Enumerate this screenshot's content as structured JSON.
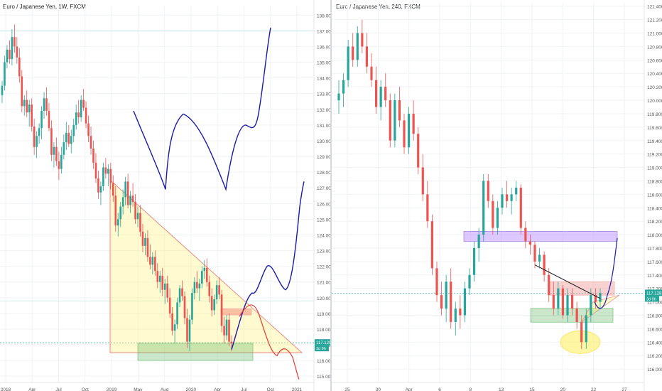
{
  "chart_data": [
    {
      "type": "candlestick",
      "title": "Euro / Japanese Yen, 1W, FXCM",
      "x_ticks": [
        "2018",
        "Apr",
        "Jul",
        "Oct",
        "2019",
        "May",
        "Aug",
        "2020",
        "Apr",
        "Jul",
        "Oct",
        "2021"
      ],
      "y_ticks": [
        138,
        137,
        136,
        135,
        134,
        133,
        132,
        131,
        130,
        129,
        128,
        127,
        126,
        125,
        124,
        123,
        122,
        121,
        120,
        119,
        118,
        117,
        116,
        115
      ],
      "ylim": [
        114.6,
        138.6
      ],
      "grid": true,
      "price_marker": {
        "value": "117.129",
        "sub": "3d 9h"
      },
      "candles": [
        [
          132.9,
          133.8,
          132.4,
          133.5
        ],
        [
          133.5,
          135.4,
          133.2,
          135.0
        ],
        [
          135.0,
          136.1,
          134.6,
          135.8
        ],
        [
          135.8,
          136.4,
          134.9,
          135.2
        ],
        [
          135.2,
          137.1,
          134.8,
          136.6
        ],
        [
          136.6,
          137.4,
          135.6,
          136.0
        ],
        [
          136.0,
          136.6,
          134.9,
          135.3
        ],
        [
          135.3,
          135.9,
          133.7,
          134.1
        ],
        [
          134.1,
          134.5,
          131.8,
          132.2
        ],
        [
          132.2,
          132.9,
          131.6,
          132.6
        ],
        [
          132.6,
          133.2,
          131.5,
          131.8
        ],
        [
          131.8,
          132.6,
          130.9,
          132.3
        ],
        [
          132.3,
          132.7,
          130.6,
          130.9
        ],
        [
          130.9,
          131.4,
          129.1,
          129.6
        ],
        [
          129.6,
          130.6,
          128.9,
          130.3
        ],
        [
          130.3,
          131.1,
          129.8,
          130.8
        ],
        [
          130.8,
          132.2,
          130.1,
          131.9
        ],
        [
          131.9,
          133.1,
          131.4,
          132.7
        ],
        [
          132.7,
          133.4,
          131.6,
          131.9
        ],
        [
          131.9,
          132.4,
          130.6,
          130.8
        ],
        [
          130.8,
          131.3,
          128.7,
          129.1
        ],
        [
          129.1,
          129.9,
          128.3,
          129.6
        ],
        [
          129.6,
          130.2,
          128.4,
          128.7
        ],
        [
          128.7,
          129.3,
          127.5,
          128.2
        ],
        [
          128.2,
          129.6,
          127.9,
          129.1
        ],
        [
          129.1,
          130.4,
          128.8,
          129.9
        ],
        [
          129.9,
          131.2,
          129.4,
          130.5
        ],
        [
          130.5,
          131.0,
          129.6,
          129.8
        ],
        [
          129.8,
          130.7,
          129.2,
          130.3
        ],
        [
          130.3,
          131.4,
          129.9,
          131.0
        ],
        [
          131.0,
          132.3,
          130.7,
          131.8
        ],
        [
          131.8,
          132.6,
          131.1,
          131.5
        ],
        [
          131.5,
          132.9,
          131.2,
          132.6
        ],
        [
          132.6,
          133.3,
          131.9,
          132.1
        ],
        [
          132.1,
          132.5,
          130.8,
          131.1
        ],
        [
          131.1,
          131.6,
          129.9,
          130.3
        ],
        [
          130.3,
          130.9,
          129.1,
          129.5
        ],
        [
          129.5,
          130.0,
          128.2,
          128.6
        ],
        [
          128.6,
          129.2,
          127.3,
          127.6
        ],
        [
          127.6,
          128.1,
          126.3,
          126.7
        ],
        [
          126.7,
          127.4,
          125.9,
          127.1
        ],
        [
          127.1,
          128.6,
          126.8,
          128.3
        ],
        [
          128.3,
          128.9,
          127.6,
          127.9
        ],
        [
          127.9,
          128.5,
          127.1,
          128.2
        ],
        [
          128.2,
          128.6,
          126.9,
          127.3
        ],
        [
          127.3,
          127.8,
          126.1,
          126.5
        ],
        [
          126.5,
          127.1,
          124.2,
          124.6
        ],
        [
          124.6,
          125.4,
          123.9,
          125.0
        ],
        [
          125.0,
          126.1,
          124.5,
          125.8
        ],
        [
          125.8,
          126.9,
          125.3,
          126.4
        ],
        [
          126.4,
          127.7,
          125.9,
          127.4
        ],
        [
          127.4,
          127.9,
          125.7,
          125.9
        ],
        [
          125.9,
          126.8,
          125.4,
          126.5
        ],
        [
          126.5,
          127.3,
          125.8,
          126.1
        ],
        [
          126.1,
          126.6,
          124.7,
          125.0
        ],
        [
          125.0,
          125.8,
          124.5,
          125.4
        ],
        [
          125.4,
          125.9,
          123.9,
          124.2
        ],
        [
          124.2,
          124.7,
          122.9,
          123.3
        ],
        [
          123.3,
          124.1,
          122.7,
          123.8
        ],
        [
          123.8,
          124.3,
          122.3,
          122.6
        ],
        [
          122.6,
          123.4,
          121.8,
          122.1
        ],
        [
          122.1,
          122.9,
          121.5,
          122.6
        ],
        [
          122.6,
          123.0,
          121.4,
          121.7
        ],
        [
          121.7,
          122.2,
          120.6,
          121.0
        ],
        [
          121.0,
          121.7,
          120.3,
          121.4
        ],
        [
          121.4,
          121.9,
          120.1,
          120.5
        ],
        [
          120.5,
          121.2,
          119.6,
          120.9
        ],
        [
          120.9,
          121.4,
          119.7,
          120.0
        ],
        [
          120.0,
          120.6,
          118.7,
          119.0
        ],
        [
          119.0,
          119.4,
          117.6,
          117.9
        ],
        [
          117.9,
          118.6,
          117.1,
          118.3
        ],
        [
          118.3,
          120.0,
          118.0,
          119.7
        ],
        [
          119.7,
          120.8,
          119.4,
          120.6
        ],
        [
          120.6,
          121.1,
          119.8,
          120.1
        ],
        [
          120.1,
          120.4,
          118.3,
          118.7
        ],
        [
          118.7,
          119.3,
          116.8,
          117.2
        ],
        [
          117.2,
          118.9,
          116.6,
          118.6
        ],
        [
          118.6,
          120.6,
          118.3,
          120.3
        ],
        [
          120.3,
          121.3,
          119.9,
          121.0
        ],
        [
          121.0,
          121.7,
          120.3,
          120.6
        ],
        [
          120.6,
          121.2,
          119.8,
          120.9
        ],
        [
          120.9,
          122.0,
          120.6,
          121.7
        ],
        [
          121.7,
          122.4,
          121.2,
          121.9
        ],
        [
          121.9,
          122.5,
          120.7,
          121.0
        ],
        [
          121.0,
          121.4,
          119.7,
          120.1
        ],
        [
          120.1,
          120.6,
          118.8,
          119.2
        ],
        [
          119.2,
          120.2,
          118.9,
          119.9
        ],
        [
          119.9,
          121.1,
          119.6,
          120.8
        ],
        [
          120.8,
          121.3,
          119.9,
          120.2
        ],
        [
          120.2,
          120.5,
          117.8,
          118.2
        ],
        [
          118.2,
          118.8,
          117.1,
          117.6
        ],
        [
          117.6,
          118.9,
          117.3,
          118.6
        ],
        [
          118.6,
          119.0,
          116.9,
          117.2
        ],
        [
          117.2,
          117.6,
          116.6,
          117.1
        ]
      ],
      "drawings": {
        "triangle": {
          "from": [
            "2019-02",
            127.5
          ],
          "bottom_left": [
            "2019-02",
            116.5
          ],
          "tip": [
            "2021-01",
            116.5
          ]
        },
        "zone_green": {
          "x": [
            "2019-04",
            "2020-07"
          ],
          "y": [
            116.0,
            117.1
          ]
        },
        "zone_red": {
          "x": [
            "2020-04",
            "2020-07"
          ],
          "y": [
            118.9,
            119.3
          ]
        },
        "projection_blue": {
          "x": [
            "2020-05",
            "2021-01"
          ],
          "y": [
            116.7,
            127.2
          ]
        },
        "projection_red": {
          "x": [
            "2020-06",
            "2021-01"
          ],
          "y": [
            119.8,
            114.8
          ]
        },
        "upper_blue_path": {
          "x": [
            "2019-03",
            "2020-09"
          ],
          "y": [
            131.9,
            137.2
          ]
        },
        "horizontal_lines": [
          137.0,
          119.8,
          117.13
        ]
      }
    },
    {
      "type": "candlestick",
      "title": "Euro / Japanese Yen, 240, FXCM",
      "x_ticks": [
        "25",
        "30",
        "Apr",
        "6",
        "8",
        "13",
        "15",
        "20",
        "22",
        "27"
      ],
      "y_ticks": [
        121.4,
        121.2,
        121.0,
        120.8,
        120.6,
        120.4,
        120.2,
        120.0,
        119.8,
        119.6,
        119.4,
        119.2,
        119.0,
        118.8,
        118.6,
        118.4,
        118.2,
        118.0,
        117.8,
        117.6,
        117.4,
        117.2,
        117.0,
        116.8,
        116.6,
        116.4,
        116.2,
        116.0
      ],
      "ylim": [
        115.8,
        121.45
      ],
      "grid": true,
      "price_marker": {
        "value": "117.129",
        "sub": "3d 9h"
      },
      "candles": [
        [
          120.0,
          120.3,
          119.8,
          120.1
        ],
        [
          120.1,
          120.4,
          119.9,
          120.3
        ],
        [
          120.3,
          120.9,
          120.2,
          120.8
        ],
        [
          120.8,
          121.0,
          120.5,
          120.6
        ],
        [
          120.6,
          121.1,
          120.5,
          121.0
        ],
        [
          121.0,
          121.2,
          120.7,
          120.8
        ],
        [
          120.8,
          121.0,
          120.4,
          120.5
        ],
        [
          120.5,
          120.7,
          120.2,
          120.3
        ],
        [
          120.3,
          120.5,
          119.8,
          119.9
        ],
        [
          119.9,
          120.3,
          119.7,
          120.2
        ],
        [
          120.2,
          120.4,
          119.9,
          120.0
        ],
        [
          120.0,
          120.1,
          119.3,
          119.4
        ],
        [
          119.4,
          120.1,
          119.3,
          120.0
        ],
        [
          120.0,
          120.2,
          119.6,
          119.7
        ],
        [
          119.7,
          119.8,
          119.2,
          119.3
        ],
        [
          119.3,
          119.9,
          119.2,
          119.8
        ],
        [
          119.8,
          120.0,
          119.4,
          119.5
        ],
        [
          119.5,
          119.6,
          118.9,
          119.0
        ],
        [
          119.0,
          119.2,
          118.5,
          118.6
        ],
        [
          118.6,
          118.8,
          118.1,
          118.2
        ],
        [
          118.2,
          118.3,
          117.4,
          117.5
        ],
        [
          117.5,
          117.6,
          117.0,
          117.1
        ],
        [
          117.1,
          117.3,
          116.8,
          116.9
        ],
        [
          116.9,
          117.4,
          116.7,
          117.3
        ],
        [
          117.3,
          117.5,
          116.6,
          116.7
        ],
        [
          116.7,
          117.0,
          116.5,
          116.9
        ],
        [
          116.9,
          117.1,
          116.6,
          116.8
        ],
        [
          116.8,
          117.3,
          116.7,
          117.2
        ],
        [
          117.2,
          117.5,
          117.1,
          117.4
        ],
        [
          117.4,
          117.9,
          117.3,
          117.8
        ],
        [
          117.8,
          118.1,
          117.6,
          118.0
        ],
        [
          118.0,
          118.9,
          117.9,
          118.8
        ],
        [
          118.8,
          118.9,
          118.4,
          118.5
        ],
        [
          118.5,
          118.6,
          118.0,
          118.1
        ],
        [
          118.1,
          118.5,
          118.0,
          118.4
        ],
        [
          118.4,
          118.7,
          118.3,
          118.6
        ],
        [
          118.6,
          118.8,
          118.4,
          118.5
        ],
        [
          118.5,
          118.7,
          118.3,
          118.6
        ],
        [
          118.6,
          118.8,
          118.5,
          118.7
        ],
        [
          118.7,
          118.75,
          118.0,
          118.1
        ],
        [
          118.1,
          118.2,
          117.8,
          117.9
        ],
        [
          117.9,
          118.0,
          117.7,
          117.85
        ],
        [
          117.85,
          117.9,
          117.5,
          117.6
        ],
        [
          117.6,
          117.8,
          117.5,
          117.7
        ],
        [
          117.7,
          117.75,
          117.3,
          117.4
        ],
        [
          117.4,
          117.5,
          117.0,
          117.1
        ],
        [
          117.1,
          117.3,
          116.8,
          116.9
        ],
        [
          116.9,
          117.3,
          116.8,
          117.2
        ],
        [
          117.2,
          117.25,
          116.75,
          116.8
        ],
        [
          116.8,
          117.2,
          116.7,
          117.1
        ],
        [
          117.1,
          117.2,
          116.8,
          116.9
        ],
        [
          116.9,
          117.0,
          116.6,
          116.7
        ],
        [
          116.7,
          116.8,
          116.3,
          116.4
        ],
        [
          116.4,
          116.9,
          116.3,
          116.8
        ],
        [
          116.8,
          117.2,
          116.7,
          117.1
        ],
        [
          117.1,
          117.2,
          116.9,
          117.0
        ],
        [
          117.0,
          117.2,
          116.9,
          117.13
        ]
      ],
      "drawings": {
        "zone_purple": {
          "x": [
            "Apr 8",
            "Apr 25"
          ],
          "y": [
            117.9,
            118.05
          ]
        },
        "zone_red": {
          "x": [
            "Apr 17",
            "Apr 24"
          ],
          "y": [
            117.1,
            117.3
          ]
        },
        "zone_green": {
          "x": [
            "Apr 15",
            "Apr 24"
          ],
          "y": [
            116.75,
            116.85
          ]
        },
        "yellow_ellipse": {
          "x": "Apr 21",
          "y": 116.4
        },
        "trendline_black": {
          "from": [
            "Apr 16",
            117.55
          ],
          "to": [
            "Apr 24",
            117.1
          ]
        },
        "projection_blue": {
          "x": [
            "Apr 23",
            "Apr 25"
          ],
          "y": [
            116.9,
            117.95
          ]
        },
        "horizontal_lines": [
          117.13
        ]
      }
    }
  ]
}
